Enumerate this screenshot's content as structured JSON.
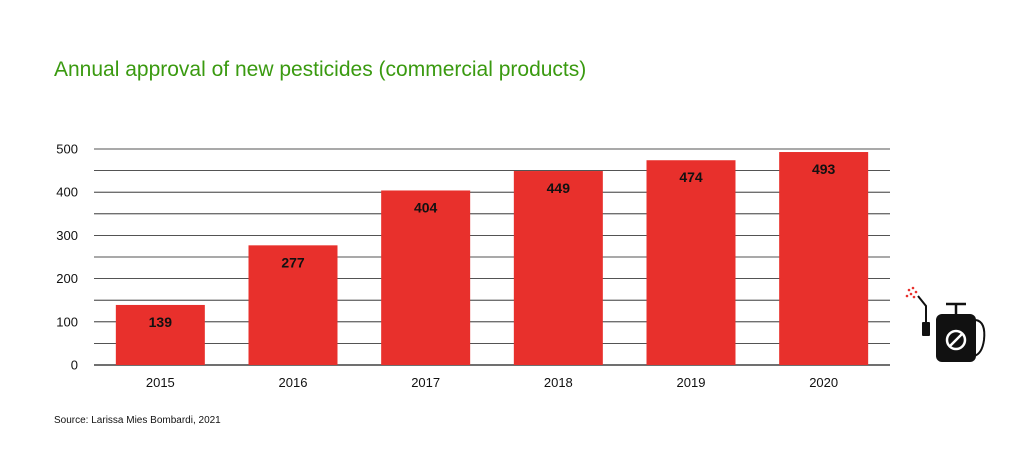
{
  "chart_data": {
    "type": "bar",
    "title": "Annual approval of new pesticides (commercial products)",
    "categories": [
      "2015",
      "2016",
      "2017",
      "2018",
      "2019",
      "2020"
    ],
    "values": [
      139,
      277,
      404,
      449,
      474,
      493
    ],
    "xlabel": "",
    "ylabel": "",
    "ylim": [
      0,
      500
    ],
    "yticks": [
      0,
      100,
      200,
      300,
      400,
      500
    ],
    "grid": true,
    "bar_color": "#e8302c",
    "title_color": "#3a9a10"
  },
  "source": "Source: Larissa Mies Bombardi, 2021",
  "icon": "pesticide-sprayer-prohibited-icon"
}
